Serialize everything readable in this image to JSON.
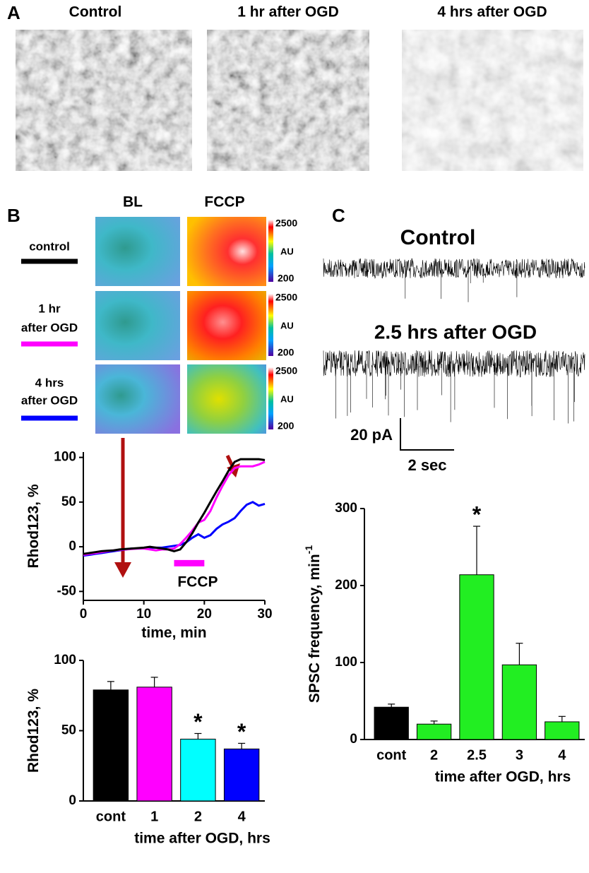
{
  "panel_labels": [
    "A",
    "B",
    "C"
  ],
  "micrographs": [
    "Control",
    "1 hr after OGD",
    "4 hrs after OGD"
  ],
  "heatmap_columns": [
    "BL",
    "FCCP"
  ],
  "colorbar": {
    "max": "2500",
    "unit": "AU",
    "min": "200"
  },
  "conditions": [
    {
      "label": [
        "control"
      ],
      "color": "#000000"
    },
    {
      "label": [
        "1 hr",
        "after OGD"
      ],
      "color": "#ff00ff"
    },
    {
      "label": [
        "4 hrs",
        "after OGD"
      ],
      "color": "#0000ff"
    }
  ],
  "traces": {
    "titles": [
      "Control",
      "2.5 hrs after OGD"
    ],
    "scale_y": "20 pA",
    "scale_x": "2 sec"
  },
  "chart_data": [
    {
      "type": "line",
      "xlabel": "time, min",
      "ylabel": "Rhod123, %",
      "x": [
        0,
        1,
        2,
        3,
        4,
        5,
        6,
        7,
        8,
        9,
        10,
        11,
        12,
        13,
        14,
        15,
        16,
        17,
        18,
        19,
        20,
        21,
        22,
        23,
        24,
        25,
        26,
        27,
        28,
        29,
        30
      ],
      "series": [
        {
          "name": "control",
          "color": "#000000",
          "values": [
            -8,
            -7,
            -6,
            -5,
            -4.5,
            -4,
            -3,
            -2.5,
            -2,
            -1.5,
            -1,
            0,
            -1,
            -2,
            -3,
            -5,
            -3,
            5,
            15,
            27,
            38,
            50,
            62,
            73,
            85,
            95,
            98,
            98,
            98,
            98,
            97
          ]
        },
        {
          "name": "1 hr after OGD",
          "color": "#ff00ff",
          "values": [
            -9,
            -8,
            -7,
            -6,
            -5,
            -4,
            -3.5,
            -3,
            -2.5,
            -2,
            -2,
            -3,
            -4,
            -3,
            -3,
            -2,
            3,
            10,
            18,
            27,
            30,
            40,
            55,
            68,
            80,
            88,
            90,
            90,
            90,
            92,
            95
          ]
        },
        {
          "name": "4 hrs after OGD",
          "color": "#0000ff",
          "values": [
            -10,
            -9,
            -8,
            -7,
            -6,
            -5,
            -4,
            -3,
            -2,
            -2,
            -2,
            -1,
            -1,
            -1,
            0,
            1,
            2,
            5,
            10,
            14,
            10,
            13,
            20,
            25,
            28,
            32,
            40,
            47,
            50,
            46,
            48
          ]
        }
      ],
      "xlim": [
        0,
        30
      ],
      "ylim": [
        -60,
        106
      ],
      "xticks": [
        0,
        10,
        20,
        30
      ],
      "yticks": [
        -50,
        0,
        50,
        100
      ],
      "annotations": [
        {
          "text": "FCCP",
          "x": [
            15,
            20
          ],
          "y": -18,
          "color": "#ff00ff"
        }
      ]
    },
    {
      "type": "bar",
      "xlabel": "time after OGD, hrs",
      "ylabel": "Rhod123, %",
      "categories": [
        "cont",
        "1",
        "2",
        "4"
      ],
      "values": [
        79,
        81,
        44,
        37
      ],
      "errors": [
        6,
        7,
        4,
        4
      ],
      "colors": [
        "#000000",
        "#ff00ff",
        "#00ffff",
        "#0000ff"
      ],
      "ylim": [
        0,
        100
      ],
      "yticks": [
        0,
        50,
        100
      ],
      "annotations": [
        {
          "text": "*",
          "category": "2"
        },
        {
          "text": "*",
          "category": "4"
        }
      ]
    },
    {
      "type": "bar",
      "xlabel": "time after OGD, hrs",
      "ylabel": "SPSC frequency, min",
      "ylabel_superscript": "-1",
      "categories": [
        "cont",
        "2",
        "2.5",
        "3",
        "4"
      ],
      "values": [
        42,
        20,
        214,
        97,
        23
      ],
      "errors": [
        4,
        4,
        63,
        28,
        7
      ],
      "colors": [
        "#000000",
        "#22ee22",
        "#22ee22",
        "#22ee22",
        "#22ee22"
      ],
      "ylim": [
        0,
        300
      ],
      "yticks": [
        0,
        100,
        200,
        300
      ],
      "annotations": [
        {
          "text": "*",
          "category": "2.5"
        }
      ]
    }
  ]
}
